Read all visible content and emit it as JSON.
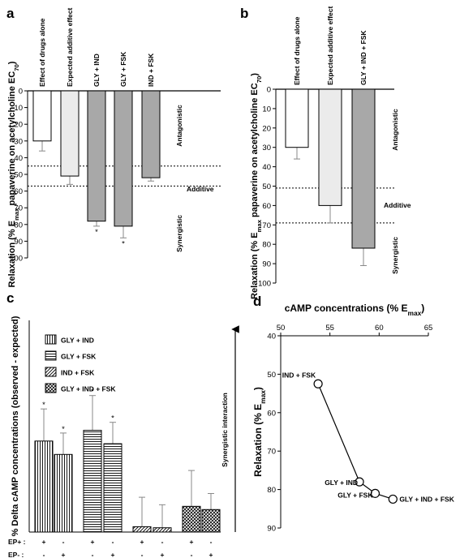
{
  "chart_data": [
    {
      "panel": "a",
      "type": "bar",
      "ylabel": "Relaxation (% E<sub>max</sub> papaverine on acetylcholine EC<sub>70</sub>)",
      "ylim": [
        0,
        100
      ],
      "yticks": [
        0,
        10,
        20,
        30,
        40,
        50,
        60,
        70,
        80,
        90,
        100
      ],
      "y_inverted": true,
      "categories": [
        "Effect of drugs alone",
        "Expected additive effect",
        "GLY + IND",
        "GLY + FSK",
        "IND + FSK"
      ],
      "values": [
        30,
        51,
        78,
        81,
        52
      ],
      "errors": [
        6,
        5,
        3,
        7,
        2
      ],
      "significance": [
        "",
        "",
        "*",
        "*",
        ""
      ],
      "fills": [
        "#ffffff",
        "#ebebeb",
        "#a8a8a8",
        "#a8a8a8",
        "#a8a8a8"
      ],
      "reference_lines": [
        45,
        57
      ],
      "region_labels": [
        "Antagonistic",
        "Additive",
        "Synergistic"
      ]
    },
    {
      "panel": "b",
      "type": "bar",
      "ylabel": "Relaxation (% E<sub>max</sub> papaverine on acetylcholine EC<sub>70</sub>)",
      "ylim": [
        0,
        100
      ],
      "yticks": [
        0,
        10,
        20,
        30,
        40,
        50,
        60,
        70,
        80,
        90,
        100
      ],
      "y_inverted": true,
      "categories": [
        "Effect of drugs alone",
        "Expected additive effect",
        "GLY + IND + FSK"
      ],
      "values": [
        30,
        60,
        82
      ],
      "errors": [
        6,
        9,
        9
      ],
      "fills": [
        "#ffffff",
        "#ebebeb",
        "#a8a8a8"
      ],
      "reference_lines": [
        51,
        69
      ],
      "region_labels": [
        "Antagonistic",
        "Additive",
        "Synergistic"
      ]
    },
    {
      "panel": "c",
      "type": "bar",
      "ylabel": "% Delta cAMP concentrations (observed - expected)",
      "legend": [
        "GLY + IND",
        "GLY + FSK",
        "IND + FSK",
        "GLY + IND + FSK"
      ],
      "series": [
        {
          "name": "GLY + IND",
          "pattern": "vertical",
          "values": [
            17,
            14.5
          ],
          "errors": [
            6,
            4
          ],
          "significance": [
            "*",
            "*"
          ]
        },
        {
          "name": "GLY + FSK",
          "pattern": "horizontal",
          "values": [
            19,
            16.5
          ],
          "errors": [
            6.5,
            4
          ],
          "significance": [
            "*",
            "*"
          ]
        },
        {
          "name": "IND + FSK",
          "pattern": "diagonal",
          "values": [
            1,
            0.8
          ],
          "errors": [
            5.5,
            4.3
          ],
          "significance": [
            "",
            ""
          ]
        },
        {
          "name": "GLY + IND + FSK",
          "pattern": "crosshatch",
          "values": [
            4.8,
            4.2
          ],
          "errors": [
            6.7,
            3
          ],
          "significance": [
            "",
            ""
          ]
        }
      ],
      "ylim": [
        0,
        40
      ],
      "row_labels": [
        "EP+ :",
        "EP- :"
      ],
      "ep_plus": [
        "+",
        "-",
        "+",
        "-",
        "+",
        "-",
        "+",
        "-"
      ],
      "ep_minus": [
        "-",
        "+",
        "-",
        "+",
        "-",
        "+",
        "-",
        "+"
      ],
      "arrow_label": "Synergistic interaction"
    },
    {
      "panel": "d",
      "type": "scatter",
      "xlabel": "cAMP concentrations (% E<sub>max</sub>)",
      "ylabel": "Relaxation (% E<sub>max</sub>)",
      "xlim": [
        50,
        65
      ],
      "xticks": [
        50,
        55,
        60,
        65
      ],
      "ylim": [
        40,
        90
      ],
      "yticks": [
        40,
        50,
        60,
        70,
        80,
        90
      ],
      "y_inverted": true,
      "points": [
        {
          "label": "IND + FSK",
          "x": 53.8,
          "y": 52.5
        },
        {
          "label": "GLY + IND",
          "x": 58.0,
          "y": 78.0
        },
        {
          "label": "GLY + FSK",
          "x": 59.6,
          "y": 81.0
        },
        {
          "label": "GLY + IND + FSK",
          "x": 61.4,
          "y": 82.5
        }
      ]
    }
  ]
}
